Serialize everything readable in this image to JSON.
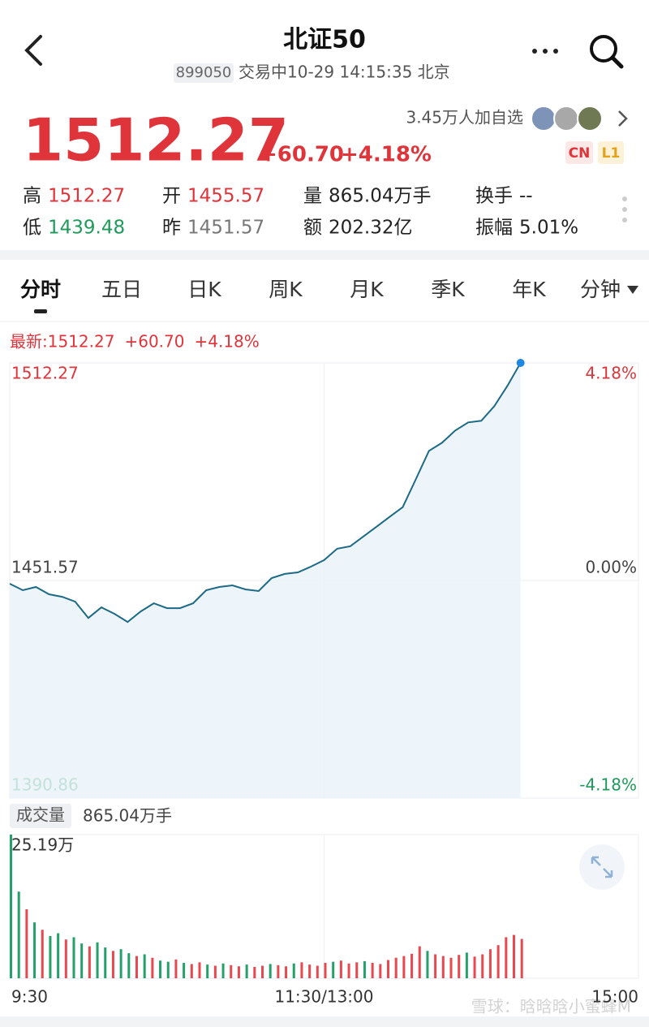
{
  "header": {
    "title": "北证50",
    "code": "899050",
    "status": "交易中10-29 14:15:35 北京"
  },
  "quote": {
    "price": "1512.27",
    "change": "+60.70",
    "percent": "+4.18%",
    "followers": "3.45万人加自选",
    "badges": [
      "CN",
      "L1"
    ],
    "stats": [
      {
        "label": "高",
        "value": "1512.27"
      },
      {
        "label": "开",
        "value": "1455.57"
      },
      {
        "label": "量",
        "value": "865.04万手"
      },
      {
        "label": "换手",
        "value": "--"
      },
      {
        "label": "低",
        "value": "1439.48"
      },
      {
        "label": "昨",
        "value": "1451.57"
      },
      {
        "label": "额",
        "value": "202.32亿"
      },
      {
        "label": "振幅",
        "value": "5.01%"
      }
    ]
  },
  "tabs": [
    "分时",
    "五日",
    "日K",
    "周K",
    "月K",
    "季K",
    "年K",
    "分钟"
  ],
  "latest": {
    "label": "最新:",
    "price": "1512.27",
    "change": "+60.70",
    "percent": "+4.18%"
  },
  "volume_header": {
    "label": "成交量",
    "total": "865.04万手"
  },
  "watermark": "雪球：晗晗晗小蜜蜂M",
  "chart_data": [
    {
      "type": "line",
      "color": "#1d6a86",
      "x": [
        0,
        5,
        10,
        15,
        20,
        25,
        30,
        35,
        40,
        45,
        50,
        55,
        60,
        65,
        70,
        75,
        80,
        85,
        90,
        95,
        100,
        105,
        110,
        115,
        120,
        125,
        130,
        135,
        140,
        145,
        150,
        155,
        160,
        165,
        170,
        175,
        180,
        185,
        190,
        195
      ],
      "values": [
        1450.66,
        1448.84,
        1449.75,
        1447.71,
        1447.02,
        1445.66,
        1441.11,
        1444.07,
        1442.25,
        1439.98,
        1442.93,
        1445.21,
        1443.84,
        1443.84,
        1445.21,
        1448.84,
        1449.75,
        1450.21,
        1449.07,
        1448.62,
        1452.25,
        1453.39,
        1453.84,
        1455.43,
        1457.25,
        1460.43,
        1461.12,
        1463.84,
        1466.57,
        1469.3,
        1472.03,
        1479.76,
        1487.71,
        1489.98,
        1493.39,
        1495.67,
        1496.12,
        1500.21,
        1505.89,
        1512.27
      ],
      "xlim": [
        0,
        240
      ],
      "ylim": [
        1390.86,
        1512.27
      ],
      "yticks": [
        1390.86,
        1451.57,
        1512.27
      ],
      "y2lim": [
        -4.18,
        4.18
      ],
      "y2ticks": [
        {
          "value": -4.18,
          "label": "-4.18%"
        },
        {
          "value": 0,
          "label": "0.00%"
        },
        {
          "value": 4.18,
          "label": "4.18%"
        }
      ],
      "grid": true
    },
    {
      "type": "bar",
      "x": [
        0,
        3,
        6,
        9,
        12,
        15,
        18,
        21,
        24,
        27,
        30,
        33,
        36,
        39,
        42,
        45,
        48,
        51,
        54,
        57,
        60,
        63,
        66,
        69,
        72,
        75,
        78,
        81,
        84,
        87,
        90,
        93,
        96,
        99,
        102,
        105,
        108,
        111,
        114,
        117,
        120,
        123,
        126,
        129,
        132,
        135,
        138,
        141,
        144,
        147,
        150,
        153,
        156,
        159,
        162,
        165,
        168,
        171,
        174,
        177,
        180,
        183,
        186,
        189,
        192,
        195
      ],
      "values": [
        25.19,
        15.2,
        12.1,
        9.8,
        8.5,
        7.4,
        7.9,
        6.8,
        7.2,
        6.1,
        5.6,
        6.3,
        5.4,
        4.8,
        5.1,
        4.4,
        3.9,
        4.2,
        3.6,
        3.1,
        2.9,
        3.3,
        2.7,
        2.5,
        2.8,
        2.4,
        2.2,
        2.6,
        2.3,
        2.1,
        2.4,
        2.0,
        2.2,
        2.5,
        2.3,
        2.1,
        2.6,
        2.8,
        2.4,
        2.2,
        2.7,
        2.9,
        3.1,
        2.6,
        2.8,
        3.0,
        2.7,
        2.5,
        3.2,
        3.6,
        3.9,
        4.3,
        5.6,
        4.8,
        4.2,
        3.9,
        3.6,
        4.1,
        4.5,
        3.8,
        4.2,
        5.1,
        5.8,
        7.2,
        7.6,
        6.9
      ],
      "colors": [
        "#24a06b",
        "#24a06b",
        "#e8484f",
        "#24a06b",
        "#e8484f",
        "#24a06b",
        "#24a06b",
        "#e8484f",
        "#24a06b",
        "#24a06b",
        "#e8484f",
        "#24a06b",
        "#24a06b",
        "#e8484f",
        "#24a06b",
        "#24a06b",
        "#e8484f",
        "#24a06b",
        "#e8484f",
        "#24a06b",
        "#24a06b",
        "#e8484f",
        "#24a06b",
        "#e8484f",
        "#e8484f",
        "#24a06b",
        "#e8484f",
        "#24a06b",
        "#e8484f",
        "#e8484f",
        "#24a06b",
        "#e8484f",
        "#e8484f",
        "#24a06b",
        "#e8484f",
        "#e8484f",
        "#24a06b",
        "#e8484f",
        "#e8484f",
        "#e8484f",
        "#e8484f",
        "#24a06b",
        "#e8484f",
        "#e8484f",
        "#e8484f",
        "#24a06b",
        "#e8484f",
        "#e8484f",
        "#e8484f",
        "#e8484f",
        "#e8484f",
        "#e8484f",
        "#e8484f",
        "#24a06b",
        "#e8484f",
        "#e8484f",
        "#e8484f",
        "#e8484f",
        "#24a06b",
        "#e8484f",
        "#e8484f",
        "#e8484f",
        "#e8484f",
        "#e8484f",
        "#e8484f",
        "#e8484f"
      ],
      "xlim": [
        0,
        240
      ],
      "ylim": [
        0,
        25.19
      ],
      "yticks": [
        {
          "value": 25.19,
          "label": "25.19万"
        }
      ],
      "xticks": [
        {
          "value": 0,
          "label": "9:30"
        },
        {
          "value": 120,
          "label": "11:30/13:00"
        },
        {
          "value": 240,
          "label": "15:00"
        }
      ],
      "grid": true
    }
  ]
}
